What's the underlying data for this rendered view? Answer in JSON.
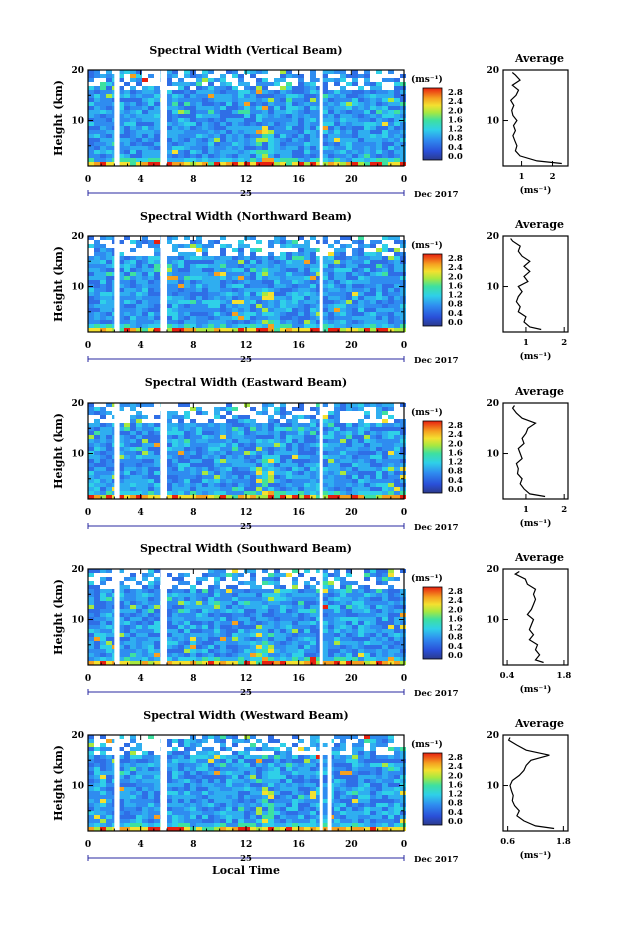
{
  "chart_data": [
    {
      "type": "heatmap",
      "title": "Spectral Width (Vertical Beam)",
      "ylabel": "Height (km)",
      "xticks": [
        "0",
        "4",
        "8",
        "12",
        "16",
        "20",
        "0"
      ],
      "yticks": [
        "20",
        "10"
      ],
      "date_label": "25",
      "month_label": "Dec 2017",
      "colorbar": {
        "unit": "(ms⁻¹)",
        "ticks": [
          "2.8",
          "2.4",
          "2.0",
          "1.6",
          "1.2",
          "0.8",
          "0.4",
          "0.0"
        ]
      },
      "xlim": [
        0,
        24
      ],
      "ylim": [
        1,
        20
      ],
      "gaps": [
        [
          2.0,
          2.4
        ],
        [
          5.5,
          6.0
        ],
        [
          17.6,
          17.8
        ]
      ],
      "profile": {
        "title": "Average",
        "xlabel": "(ms⁻¹)",
        "xticks": [
          "1",
          "2"
        ],
        "xtick_values": [
          1,
          2
        ],
        "xlim": [
          0.4,
          2.5
        ],
        "yticks": [
          "20",
          "10"
        ],
        "ylim": [
          1,
          20
        ],
        "height": [
          1.5,
          2,
          3,
          4,
          5,
          6,
          7,
          8,
          9,
          10,
          11,
          12,
          13,
          14,
          15,
          16,
          17,
          18,
          19,
          19.5
        ],
        "width": [
          2.3,
          1.5,
          0.95,
          0.8,
          0.85,
          0.78,
          0.72,
          0.8,
          0.74,
          0.85,
          0.72,
          0.68,
          0.75,
          0.65,
          0.82,
          0.9,
          0.7,
          0.95,
          0.8,
          0.7
        ]
      }
    },
    {
      "type": "heatmap",
      "title": "Spectral Width (Northward Beam)",
      "ylabel": "Height (km)",
      "xticks": [
        "0",
        "4",
        "8",
        "12",
        "16",
        "20",
        "0"
      ],
      "yticks": [
        "20",
        "10"
      ],
      "date_label": "25",
      "month_label": "Dec 2017",
      "colorbar": {
        "unit": "(ms⁻¹)",
        "ticks": [
          "2.8",
          "2.4",
          "2.0",
          "1.6",
          "1.2",
          "0.8",
          "0.4",
          "0.0"
        ]
      },
      "xlim": [
        0,
        24
      ],
      "ylim": [
        1,
        20
      ],
      "gaps": [
        [
          2.0,
          2.4
        ],
        [
          5.5,
          6.0
        ],
        [
          17.6,
          17.8
        ]
      ],
      "profile": {
        "title": "Average",
        "xlabel": "(ms⁻¹)",
        "xticks": [
          "1",
          "2"
        ],
        "xtick_values": [
          1,
          2
        ],
        "xlim": [
          0.4,
          2.1
        ],
        "yticks": [
          "20",
          "10"
        ],
        "ylim": [
          1,
          20
        ],
        "height": [
          1.5,
          2,
          3,
          4,
          5,
          6,
          7,
          8,
          9,
          10,
          11,
          12,
          13,
          14,
          15,
          16,
          17,
          18,
          19,
          19.5
        ],
        "width": [
          1.4,
          1.1,
          0.95,
          1.0,
          0.8,
          0.85,
          0.75,
          0.8,
          0.9,
          0.8,
          1.05,
          0.95,
          1.1,
          0.95,
          1.1,
          0.9,
          0.8,
          0.85,
          0.65,
          0.6
        ]
      }
    },
    {
      "type": "heatmap",
      "title": "Spectral Width (Eastward Beam)",
      "ylabel": "Height (km)",
      "xticks": [
        "0",
        "4",
        "8",
        "12",
        "16",
        "20",
        "0"
      ],
      "yticks": [
        "20",
        "10"
      ],
      "date_label": "25",
      "month_label": "Dec 2017",
      "colorbar": {
        "unit": "(ms⁻¹)",
        "ticks": [
          "2.8",
          "2.4",
          "2.0",
          "1.6",
          "1.2",
          "0.8",
          "0.4",
          "0.0"
        ]
      },
      "xlim": [
        0,
        24
      ],
      "ylim": [
        1,
        20
      ],
      "gaps": [
        [
          2.0,
          2.4
        ],
        [
          5.5,
          6.0
        ],
        [
          17.6,
          17.8
        ]
      ],
      "profile": {
        "title": "Average",
        "xlabel": "(ms⁻¹)",
        "xticks": [
          "1",
          "2"
        ],
        "xtick_values": [
          1,
          2
        ],
        "xlim": [
          0.4,
          2.1
        ],
        "yticks": [
          "20",
          "10"
        ],
        "ylim": [
          1,
          20
        ],
        "height": [
          1.5,
          2,
          3,
          4,
          5,
          6,
          7,
          8,
          9,
          10,
          11,
          12,
          13,
          14,
          15,
          16,
          17,
          18,
          19,
          19.5
        ],
        "width": [
          1.5,
          1.1,
          0.95,
          0.85,
          0.9,
          0.78,
          0.8,
          0.75,
          0.9,
          0.85,
          0.8,
          0.95,
          0.9,
          1.0,
          1.05,
          1.25,
          0.9,
          0.75,
          0.65,
          0.7
        ]
      }
    },
    {
      "type": "heatmap",
      "title": "Spectral Width (Southward Beam)",
      "ylabel": "Height (km)",
      "xticks": [
        "0",
        "4",
        "8",
        "12",
        "16",
        "20",
        "0"
      ],
      "yticks": [
        "20",
        "10"
      ],
      "date_label": "25",
      "month_label": "Dec 2017",
      "colorbar": {
        "unit": "(ms⁻¹)",
        "ticks": [
          "2.8",
          "2.4",
          "2.0",
          "1.6",
          "1.2",
          "0.8",
          "0.4",
          "0.0"
        ]
      },
      "xlim": [
        0,
        24
      ],
      "ylim": [
        1,
        20
      ],
      "gaps": [
        [
          2.0,
          2.4
        ],
        [
          5.5,
          6.0
        ],
        [
          17.6,
          17.8
        ]
      ],
      "profile": {
        "title": "Average",
        "xlabel": "(ms⁻¹)",
        "xticks": [
          "0.4",
          "1.8"
        ],
        "xtick_values": [
          0.4,
          1.8
        ],
        "xlim": [
          0.3,
          1.9
        ],
        "yticks": [
          "20",
          "10"
        ],
        "ylim": [
          1,
          20
        ],
        "height": [
          1.5,
          2,
          3,
          4,
          5,
          6,
          7,
          8,
          9,
          10,
          11,
          12,
          13,
          14,
          15,
          16,
          17,
          18,
          19,
          19.5
        ],
        "width": [
          1.3,
          1.1,
          1.2,
          1.1,
          1.15,
          0.95,
          1.05,
          0.95,
          1.0,
          1.05,
          0.9,
          1.0,
          1.05,
          1.1,
          1.05,
          1.1,
          0.9,
          0.85,
          0.6,
          0.7
        ]
      }
    },
    {
      "type": "heatmap",
      "title": "Spectral Width (Westward Beam)",
      "ylabel": "Height (km)",
      "xlabel": "Local Time",
      "xticks": [
        "0",
        "4",
        "8",
        "12",
        "16",
        "20",
        "0"
      ],
      "yticks": [
        "20",
        "10"
      ],
      "date_label": "25",
      "month_label": "Dec 2017",
      "colorbar": {
        "unit": "(ms⁻¹)",
        "ticks": [
          "2.8",
          "2.4",
          "2.0",
          "1.6",
          "1.2",
          "0.8",
          "0.4",
          "0.0"
        ]
      },
      "xlim": [
        0,
        24
      ],
      "ylim": [
        1,
        20
      ],
      "gaps": [
        [
          2.0,
          2.4
        ],
        [
          5.5,
          6.0
        ],
        [
          17.6,
          17.8
        ],
        [
          18.2,
          18.5
        ]
      ],
      "profile": {
        "title": "Average",
        "xlabel": "(ms⁻¹)",
        "xticks": [
          "0.6",
          "1.8"
        ],
        "xtick_values": [
          0.6,
          1.8
        ],
        "xlim": [
          0.5,
          1.9
        ],
        "yticks": [
          "20",
          "10"
        ],
        "ylim": [
          1,
          20
        ],
        "height": [
          1.5,
          2,
          3,
          4,
          5,
          6,
          7,
          8,
          9,
          10,
          11,
          12,
          13,
          14,
          15,
          16,
          17,
          18,
          19,
          19.5
        ],
        "width": [
          1.6,
          1.2,
          0.95,
          0.8,
          0.85,
          0.75,
          0.7,
          0.72,
          0.68,
          0.65,
          0.7,
          0.85,
          0.95,
          1.0,
          1.1,
          1.5,
          1.0,
          0.8,
          0.62,
          0.65
        ]
      }
    }
  ]
}
